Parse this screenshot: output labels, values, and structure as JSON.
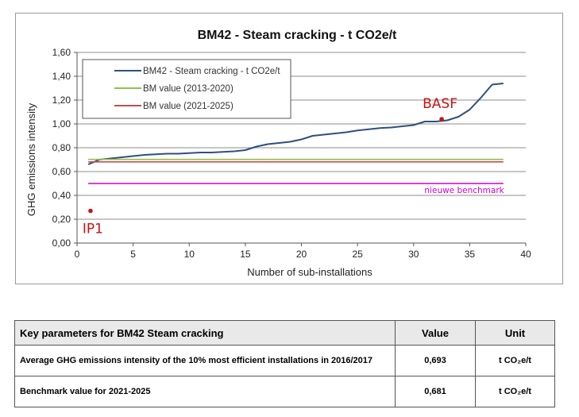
{
  "chart_data": {
    "type": "line",
    "title": "BM42 - Steam cracking - t CO2e/t",
    "xlabel": "Number of sub-installations",
    "ylabel": "GHG emissions intensity",
    "xlim": [
      0,
      40
    ],
    "ylim": [
      0,
      1.6
    ],
    "x_ticks": [
      "0",
      "5",
      "10",
      "15",
      "20",
      "25",
      "30",
      "35",
      "40"
    ],
    "y_ticks": [
      "0,00",
      "0,20",
      "0,40",
      "0,60",
      "0,80",
      "1,00",
      "1,20",
      "1,40",
      "1,60"
    ],
    "grid": "horizontal",
    "legend_position": "top-left",
    "series": [
      {
        "name": "BM42 - Steam cracking - t CO2e/t",
        "color": "#2f4f7f",
        "x": [
          1,
          2,
          3,
          4,
          5,
          6,
          7,
          8,
          9,
          10,
          11,
          12,
          13,
          14,
          15,
          16,
          17,
          18,
          19,
          20,
          21,
          22,
          23,
          24,
          25,
          26,
          27,
          28,
          29,
          30,
          31,
          32,
          33,
          34,
          35,
          36,
          37,
          38
        ],
        "y": [
          0.66,
          0.7,
          0.71,
          0.72,
          0.73,
          0.74,
          0.745,
          0.75,
          0.75,
          0.755,
          0.76,
          0.76,
          0.765,
          0.77,
          0.78,
          0.81,
          0.83,
          0.84,
          0.85,
          0.87,
          0.9,
          0.91,
          0.92,
          0.93,
          0.945,
          0.955,
          0.965,
          0.97,
          0.98,
          0.99,
          1.02,
          1.02,
          1.03,
          1.06,
          1.12,
          1.22,
          1.33,
          1.34
        ]
      },
      {
        "name": "BM value (2013-2020)",
        "color": "#92c050",
        "x": [
          1,
          38
        ],
        "y": [
          0.702,
          0.702
        ]
      },
      {
        "name": "BM value (2021-2025)",
        "color": "#c0504d",
        "x": [
          1,
          38
        ],
        "y": [
          0.681,
          0.681
        ]
      },
      {
        "name": "",
        "color": "#cc00cc",
        "x": [
          1,
          38
        ],
        "y": [
          0.5,
          0.5
        ]
      }
    ],
    "annotations": [
      {
        "text": "nieuwe benchmark",
        "color": "#cc00cc",
        "x": 38,
        "y": 0.5
      },
      {
        "text": "BASF",
        "color": "#cc1111",
        "x": 32.5,
        "y": 1.04
      },
      {
        "text": "IP1",
        "color": "#cc1111",
        "x": 1.2,
        "y": 0.27
      }
    ]
  },
  "table": {
    "headers": [
      "Key parameters for BM42 Steam cracking",
      "Value",
      "Unit"
    ],
    "rows": [
      [
        "Average GHG emissions intensity of the 10% most efficient installations in 2016/2017",
        "0,693",
        "t CO₂e/t"
      ],
      [
        "Benchmark value for 2021-2025",
        "0,681",
        "t CO₂e/t"
      ]
    ]
  }
}
